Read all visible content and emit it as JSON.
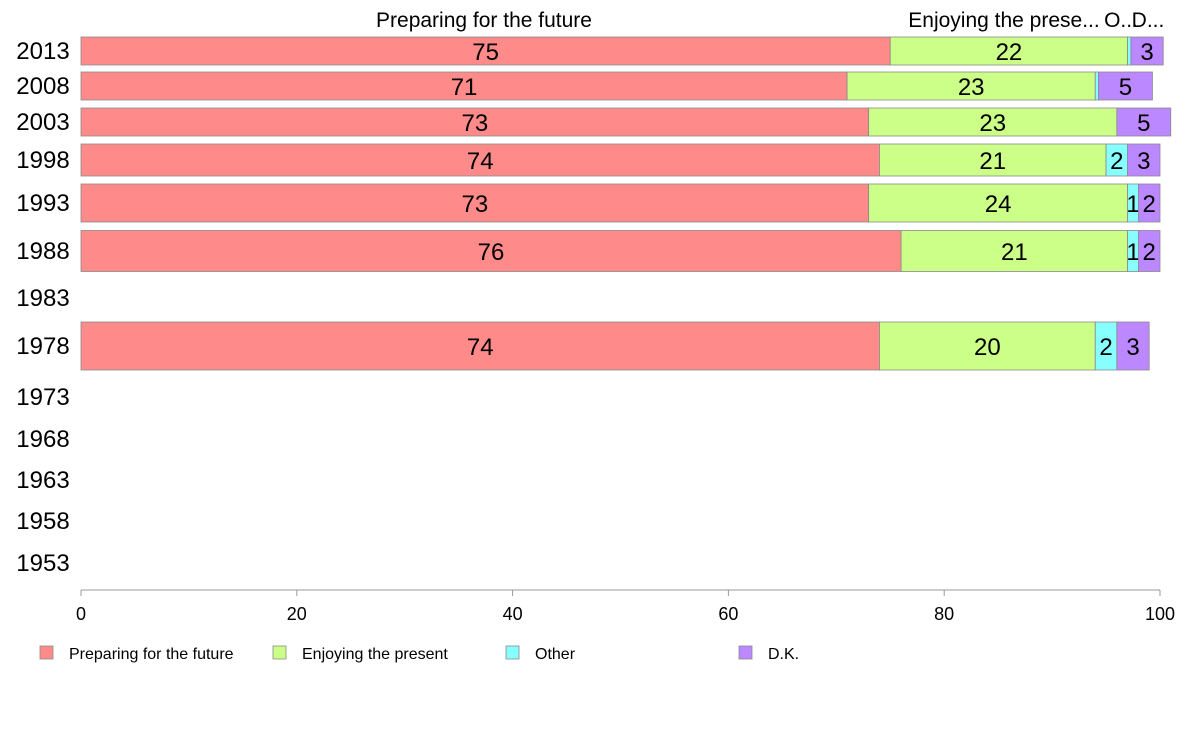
{
  "chart_data": {
    "type": "bar",
    "orientation": "horizontal",
    "stacked": true,
    "categories": [
      "2013",
      "2008",
      "2003",
      "1998",
      "1993",
      "1988",
      "1983",
      "1978",
      "1973",
      "1968",
      "1963",
      "1958",
      "1953"
    ],
    "series": [
      {
        "name": "Preparing for the future",
        "color": "#ff8a8a",
        "values": [
          75,
          71,
          73,
          74,
          73,
          76,
          null,
          74,
          null,
          null,
          null,
          null,
          null
        ]
      },
      {
        "name": "Enjoying the present",
        "color": "#ccff88",
        "values": [
          22,
          23,
          23,
          21,
          24,
          21,
          null,
          20,
          null,
          null,
          null,
          null,
          null
        ]
      },
      {
        "name": "Other",
        "color": "#88ffff",
        "values": [
          0.3,
          0.3,
          0,
          2,
          1,
          1,
          null,
          2,
          null,
          null,
          null,
          null,
          null
        ]
      },
      {
        "name": "D.K.",
        "color": "#bb88ff",
        "values": [
          3,
          5,
          5,
          3,
          2,
          2,
          null,
          3,
          null,
          null,
          null,
          null,
          null
        ]
      }
    ],
    "data_labels": {
      "Preparing for the future": [
        "75",
        "71",
        "73",
        "74",
        "73",
        "76",
        "",
        "74",
        "",
        "",
        "",
        "",
        ""
      ],
      "Enjoying the present": [
        "22",
        "23",
        "23",
        "21",
        "24",
        "21",
        "",
        "20",
        "",
        "",
        "",
        "",
        ""
      ],
      "Other": [
        "",
        "",
        "",
        "2",
        "1",
        "1",
        "",
        "2",
        "",
        "",
        "",
        "",
        ""
      ],
      "D.K.": [
        "3",
        "5",
        "5",
        "3",
        "2",
        "2",
        "",
        "3",
        "",
        "",
        "",
        "",
        ""
      ]
    },
    "column_headers": [
      {
        "text": "Preparing for the future",
        "series": "Preparing for the future"
      },
      {
        "text": "Enjoying the prese...",
        "series": "Enjoying the present"
      },
      {
        "text": "O...",
        "series": "Other"
      },
      {
        "text": "D...",
        "series": "D.K."
      }
    ],
    "xlim": [
      0,
      100
    ],
    "xticks": [
      "0",
      "20",
      "40",
      "60",
      "80",
      "100"
    ],
    "grid": false,
    "legend": {
      "position": "bottom-left",
      "entries": [
        "Preparing for the future",
        "Enjoying the present",
        "Other",
        "D.K."
      ]
    }
  }
}
